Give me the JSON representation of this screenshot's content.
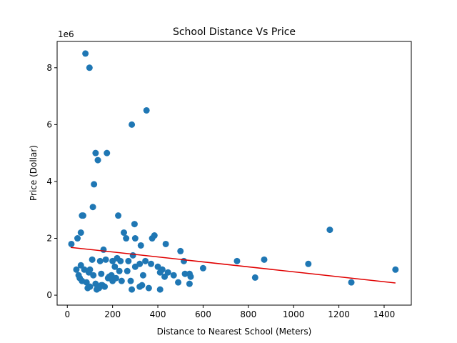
{
  "chart_data": {
    "type": "scatter",
    "title": "School Distance Vs Price",
    "xlabel": "Distance to Nearest School (Meters)",
    "ylabel": "Price (Dollar)",
    "y_offset_label": "1e6",
    "xlim": [
      -45,
      1520
    ],
    "ylim": [
      -350000,
      8925000
    ],
    "x_ticks": [
      0,
      200,
      400,
      600,
      800,
      1000,
      1200,
      1400
    ],
    "x_tick_labels": [
      "0",
      "200",
      "400",
      "600",
      "800",
      "1000",
      "1200",
      "1400"
    ],
    "y_ticks": [
      0,
      2000000,
      4000000,
      6000000,
      8000000
    ],
    "y_tick_labels": [
      "0",
      "2",
      "4",
      "6",
      "8"
    ],
    "grid": false,
    "colors": {
      "points": "#1f77b4",
      "trend": "#e00000"
    },
    "series": [
      {
        "kind": "scatter",
        "points": [
          [
            80,
            8500000
          ],
          [
            98,
            8000000
          ],
          [
            350,
            6500000
          ],
          [
            285,
            6000000
          ],
          [
            125,
            5000000
          ],
          [
            175,
            5000000
          ],
          [
            135,
            4750000
          ],
          [
            118,
            3900000
          ],
          [
            113,
            3100000
          ],
          [
            70,
            2800000
          ],
          [
            65,
            2800000
          ],
          [
            225,
            2800000
          ],
          [
            297,
            2500000
          ],
          [
            60,
            2200000
          ],
          [
            250,
            2200000
          ],
          [
            1160,
            2300000
          ],
          [
            45,
            2000000
          ],
          [
            260,
            2000000
          ],
          [
            300,
            2000000
          ],
          [
            375,
            2000000
          ],
          [
            385,
            2100000
          ],
          [
            18,
            1800000
          ],
          [
            325,
            1750000
          ],
          [
            435,
            1800000
          ],
          [
            160,
            1600000
          ],
          [
            500,
            1550000
          ],
          [
            290,
            1400000
          ],
          [
            270,
            1200000
          ],
          [
            345,
            1200000
          ],
          [
            370,
            1100000
          ],
          [
            515,
            1200000
          ],
          [
            750,
            1200000
          ],
          [
            870,
            1250000
          ],
          [
            1065,
            1100000
          ],
          [
            200,
            1200000
          ],
          [
            220,
            1300000
          ],
          [
            235,
            1200000
          ],
          [
            110,
            1250000
          ],
          [
            145,
            1200000
          ],
          [
            170,
            1250000
          ],
          [
            60,
            1050000
          ],
          [
            40,
            900000
          ],
          [
            75,
            900000
          ],
          [
            95,
            800000
          ],
          [
            100,
            900000
          ],
          [
            50,
            700000
          ],
          [
            115,
            700000
          ],
          [
            210,
            1000000
          ],
          [
            230,
            850000
          ],
          [
            265,
            850000
          ],
          [
            300,
            1000000
          ],
          [
            320,
            1100000
          ],
          [
            400,
            1000000
          ],
          [
            410,
            800000
          ],
          [
            430,
            650000
          ],
          [
            445,
            800000
          ],
          [
            470,
            700000
          ],
          [
            520,
            750000
          ],
          [
            540,
            750000
          ],
          [
            545,
            650000
          ],
          [
            600,
            950000
          ],
          [
            830,
            620000
          ],
          [
            1450,
            900000
          ],
          [
            1255,
            450000
          ],
          [
            65,
            500000
          ],
          [
            85,
            450000
          ],
          [
            100,
            300000
          ],
          [
            125,
            400000
          ],
          [
            150,
            350000
          ],
          [
            165,
            300000
          ],
          [
            180,
            600000
          ],
          [
            195,
            700000
          ],
          [
            150,
            750000
          ],
          [
            200,
            500000
          ],
          [
            215,
            600000
          ],
          [
            240,
            500000
          ],
          [
            280,
            500000
          ],
          [
            285,
            200000
          ],
          [
            330,
            350000
          ],
          [
            320,
            300000
          ],
          [
            360,
            250000
          ],
          [
            410,
            200000
          ],
          [
            490,
            450000
          ],
          [
            540,
            400000
          ],
          [
            130,
            200000
          ],
          [
            140,
            250000
          ],
          [
            155,
            350000
          ],
          [
            185,
            650000
          ],
          [
            335,
            700000
          ],
          [
            420,
            900000
          ],
          [
            55,
            600000
          ],
          [
            90,
            250000
          ]
        ]
      },
      {
        "kind": "trend",
        "points": [
          [
            15,
            1680000
          ],
          [
            1450,
            430000
          ]
        ]
      }
    ]
  }
}
